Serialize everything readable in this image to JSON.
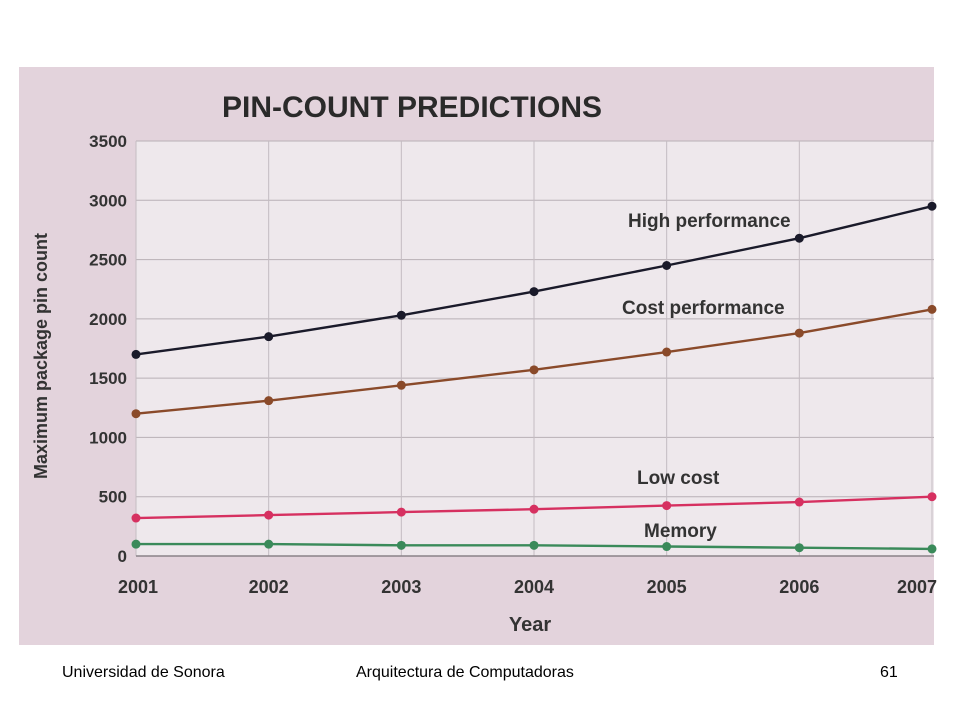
{
  "chart_data": {
    "type": "line",
    "title": "PIN-COUNT PREDICTIONS",
    "xlabel": "Year",
    "ylabel": "Maximum package pin count",
    "x": [
      "2001",
      "2002",
      "2003",
      "2004",
      "2005",
      "2006",
      "2007"
    ],
    "x_tick_labels": [
      "2001",
      "2002",
      "2003",
      "2004",
      "2005",
      "2006",
      "2007"
    ],
    "y_ticks": [
      "0",
      "500",
      "1000",
      "1500",
      "2000",
      "2500",
      "3000",
      "3500"
    ],
    "ylim": [
      0,
      3500
    ],
    "grid": true,
    "series": [
      {
        "name": "High performance",
        "color": "#1a1a2a",
        "values": [
          1700,
          1850,
          2030,
          2230,
          2450,
          2680,
          2950
        ]
      },
      {
        "name": "Cost performance",
        "color": "#8a4a2a",
        "values": [
          1200,
          1310,
          1440,
          1570,
          1720,
          1880,
          2080
        ]
      },
      {
        "name": "Low cost",
        "color": "#d63060",
        "values": [
          320,
          345,
          370,
          395,
          425,
          455,
          500
        ]
      },
      {
        "name": "Memory",
        "color": "#3a8a5a",
        "values": [
          100,
          100,
          90,
          90,
          80,
          70,
          60
        ]
      }
    ]
  },
  "footer": {
    "left": "Universidad de Sonora",
    "center": "Arquitectura de Computadoras",
    "page": "61"
  }
}
